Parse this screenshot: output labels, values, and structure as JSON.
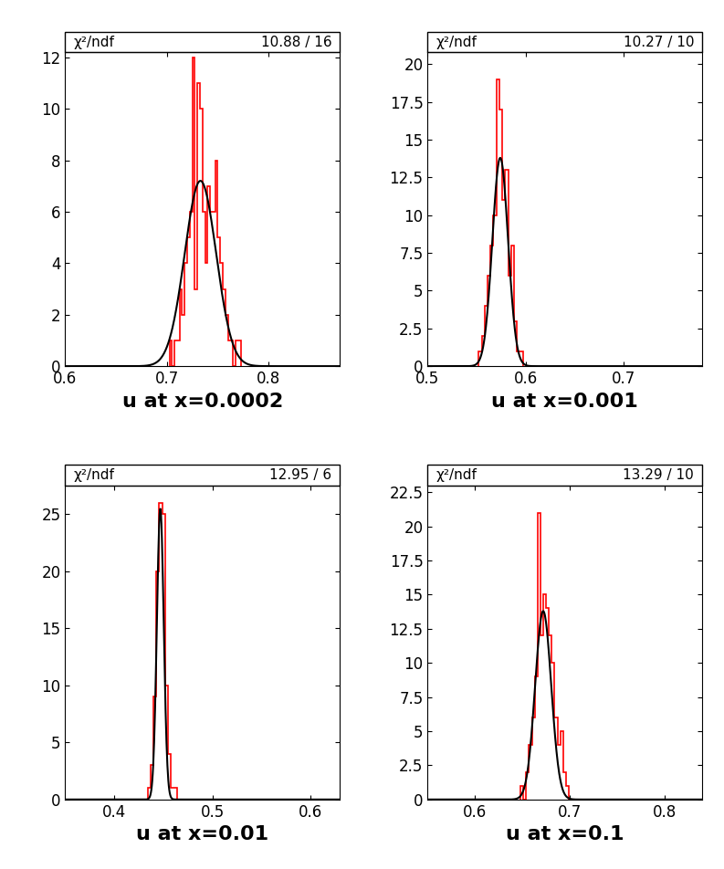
{
  "chart_data": [
    {
      "type": "histogram",
      "x_label": "u at x=0.0002",
      "stats_label": "χ²/ndf",
      "stats_value": "10.88 / 16",
      "bins": [
        0.7025,
        0.705,
        0.7075,
        0.71,
        0.7125,
        0.715,
        0.7175,
        0.72,
        0.7225,
        0.725,
        0.7275,
        0.73,
        0.7325,
        0.735,
        0.7375,
        0.74,
        0.7425,
        0.745,
        0.7475,
        0.75,
        0.7525,
        0.755,
        0.7575,
        0.76,
        0.7625,
        0.765,
        0.7675,
        0.77,
        0.7725
      ],
      "values": [
        1,
        0,
        1,
        1,
        3,
        2,
        4,
        5,
        6,
        12,
        3,
        11,
        10,
        6,
        4,
        7,
        6,
        6,
        8,
        5,
        4,
        3,
        2,
        1,
        1,
        0,
        1,
        1
      ],
      "color": "#ff0000",
      "fit": {
        "mean": 0.733,
        "sigma": 0.0155,
        "height": 7.2,
        "color": "#000000"
      },
      "xlim": [
        0.6,
        0.87
      ],
      "xticks": [
        0.6,
        0.7,
        0.8
      ],
      "ylim": [
        0,
        12.2
      ],
      "yticks": [
        0,
        2,
        4,
        6,
        8,
        10,
        12
      ]
    },
    {
      "type": "histogram",
      "x_label": "u at x=0.001",
      "stats_label": "χ²/ndf",
      "stats_value": "10.27 / 10",
      "bins": [
        0.552,
        0.555,
        0.558,
        0.561,
        0.564,
        0.567,
        0.57,
        0.573,
        0.576,
        0.579,
        0.582,
        0.585,
        0.588,
        0.591,
        0.594,
        0.597
      ],
      "values": [
        1,
        2,
        4,
        6,
        8,
        10,
        19,
        17,
        11,
        13,
        6,
        8,
        3,
        1,
        1
      ],
      "color": "#ff0000",
      "fit": {
        "mean": 0.574,
        "sigma": 0.008,
        "height": 13.8,
        "color": "#000000"
      },
      "xlim": [
        0.5,
        0.78
      ],
      "xticks": [
        0.5,
        0.6,
        0.7
      ],
      "ylim": [
        0,
        20.8
      ],
      "yticks": [
        0,
        2.5,
        5,
        7.5,
        10,
        12.5,
        15,
        17.5,
        20
      ]
    },
    {
      "type": "histogram",
      "x_label": "u at x=0.01",
      "stats_label": "χ²/ndf",
      "stats_value": "12.95 / 6",
      "bins": [
        0.434,
        0.437,
        0.44,
        0.443,
        0.446,
        0.449,
        0.452,
        0.455,
        0.458,
        0.461,
        0.464
      ],
      "values": [
        1,
        3,
        9,
        20,
        26,
        25,
        10,
        4,
        1,
        1
      ],
      "color": "#ff0000",
      "fit": {
        "mean": 0.447,
        "sigma": 0.0035,
        "height": 25.5,
        "color": "#000000"
      },
      "xlim": [
        0.35,
        0.63
      ],
      "xticks": [
        0.4,
        0.5,
        0.6
      ],
      "ylim": [
        0,
        27.5
      ],
      "yticks": [
        0,
        5,
        10,
        15,
        20,
        25
      ]
    },
    {
      "type": "histogram",
      "x_label": "u at x=0.1",
      "stats_label": "χ²/ndf",
      "stats_value": "13.29 / 10",
      "bins": [
        0.648,
        0.651,
        0.654,
        0.657,
        0.66,
        0.663,
        0.666,
        0.669,
        0.672,
        0.675,
        0.678,
        0.681,
        0.684,
        0.687,
        0.69,
        0.693,
        0.696,
        0.699
      ],
      "values": [
        1,
        0,
        2,
        4,
        6,
        9,
        21,
        12,
        15,
        14,
        12,
        10,
        6,
        4,
        5,
        2,
        1
      ],
      "color": "#ff0000",
      "fit": {
        "mean": 0.672,
        "sigma": 0.0085,
        "height": 13.8,
        "color": "#000000"
      },
      "xlim": [
        0.55,
        0.84
      ],
      "xticks": [
        0.6,
        0.7,
        0.8
      ],
      "ylim": [
        0,
        23
      ],
      "yticks": [
        0,
        2.5,
        5,
        7.5,
        10,
        12.5,
        15,
        17.5,
        20,
        22.5
      ]
    }
  ]
}
